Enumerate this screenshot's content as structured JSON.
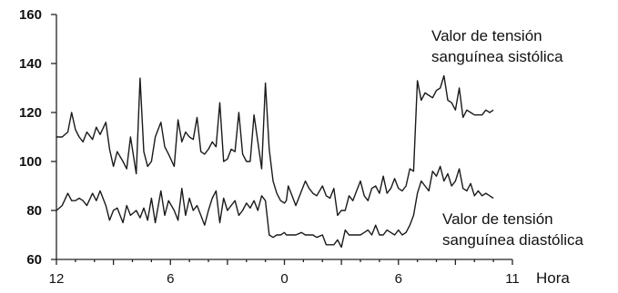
{
  "chart_data": {
    "type": "line",
    "title": "",
    "xlabel": "Hora",
    "ylabel": "",
    "ylim": [
      60,
      160
    ],
    "xlim": [
      0,
      23
    ],
    "grid": false,
    "x_tick_labels": [
      {
        "x": 0,
        "label": "12"
      },
      {
        "x": 6,
        "label": "6"
      },
      {
        "x": 12,
        "label": "0"
      },
      {
        "x": 18,
        "label": "6"
      },
      {
        "x": 24,
        "label": "11"
      }
    ],
    "y_ticks": [
      60,
      80,
      100,
      120,
      140,
      160
    ],
    "series": [
      {
        "name": "Valor de tensión sanguínea sistólica",
        "x": [
          0,
          0.3,
          0.6,
          0.8,
          1.0,
          1.2,
          1.4,
          1.6,
          1.9,
          2.1,
          2.3,
          2.6,
          2.8,
          3.0,
          3.2,
          3.5,
          3.7,
          3.9,
          4.2,
          4.4,
          4.6,
          4.8,
          5.0,
          5.2,
          5.5,
          5.7,
          5.9,
          6.2,
          6.4,
          6.6,
          6.8,
          7.0,
          7.2,
          7.4,
          7.6,
          7.8,
          8.0,
          8.2,
          8.4,
          8.6,
          8.8,
          9.0,
          9.2,
          9.4,
          9.6,
          9.8,
          10.0,
          10.2,
          10.4,
          10.6,
          10.8,
          11.0,
          11.2,
          11.4,
          11.6,
          11.8,
          12.0,
          12.1,
          12.2,
          12.4,
          12.6,
          12.9,
          13.1,
          13.3,
          13.5,
          13.7,
          14.0,
          14.2,
          14.4,
          14.6,
          14.8,
          15.0,
          15.2,
          15.4,
          15.6,
          15.8,
          16.0,
          16.2,
          16.4,
          16.6,
          16.8,
          17.0,
          17.2,
          17.4,
          17.6,
          17.8,
          18.0,
          18.2,
          18.4,
          18.6,
          18.8,
          19.0,
          19.2,
          19.4,
          19.6,
          19.8,
          20.0,
          20.2,
          20.4,
          20.6,
          20.8,
          21.0,
          21.2,
          21.4,
          21.6,
          21.8,
          22.0,
          22.2,
          22.4,
          22.6,
          22.8,
          23.0
        ],
        "values": [
          110,
          110,
          112,
          120,
          113,
          110,
          108,
          112,
          109,
          114,
          111,
          116,
          105,
          98,
          104,
          100,
          97,
          110,
          95,
          134,
          104,
          98,
          100,
          110,
          116,
          106,
          103,
          98,
          117,
          108,
          112,
          110,
          109,
          118,
          104,
          103,
          105,
          108,
          106,
          124,
          100,
          101,
          105,
          104,
          120,
          103,
          100,
          100,
          119,
          108,
          97,
          132,
          105,
          92,
          87,
          84,
          83,
          84,
          90,
          86,
          82,
          88,
          92,
          89,
          87,
          86,
          90,
          86,
          85,
          89,
          78,
          80,
          80,
          86,
          84,
          88,
          92,
          86,
          84,
          89,
          90,
          87,
          94,
          87,
          89,
          93,
          89,
          88,
          90,
          97,
          96,
          133,
          125,
          128,
          127,
          126,
          129,
          130,
          135,
          125,
          124,
          121,
          130,
          118,
          121,
          120,
          119,
          119,
          119,
          121,
          120,
          121
        ],
        "annotation": [
          "Valor de tensión",
          "sanguínea sistólica"
        ]
      },
      {
        "name": "Valor de tensión sanguínea diastólica",
        "x": [
          0,
          0.3,
          0.6,
          0.8,
          1.0,
          1.2,
          1.4,
          1.6,
          1.9,
          2.1,
          2.3,
          2.6,
          2.8,
          3.0,
          3.2,
          3.5,
          3.7,
          3.9,
          4.2,
          4.4,
          4.6,
          4.8,
          5.0,
          5.2,
          5.5,
          5.7,
          5.9,
          6.2,
          6.4,
          6.6,
          6.8,
          7.0,
          7.2,
          7.4,
          7.6,
          7.8,
          8.0,
          8.2,
          8.4,
          8.6,
          8.8,
          9.0,
          9.2,
          9.4,
          9.6,
          9.8,
          10.0,
          10.2,
          10.4,
          10.6,
          10.8,
          11.0,
          11.2,
          11.4,
          11.6,
          11.8,
          12.0,
          12.1,
          12.2,
          12.4,
          12.6,
          12.9,
          13.1,
          13.3,
          13.5,
          13.7,
          14.0,
          14.2,
          14.4,
          14.6,
          14.8,
          15.0,
          15.2,
          15.4,
          15.6,
          15.8,
          16.0,
          16.2,
          16.4,
          16.6,
          16.8,
          17.0,
          17.2,
          17.4,
          17.6,
          17.8,
          18.0,
          18.2,
          18.4,
          18.6,
          18.8,
          19.0,
          19.2,
          19.4,
          19.6,
          19.8,
          20.0,
          20.2,
          20.4,
          20.6,
          20.8,
          21.0,
          21.2,
          21.4,
          21.6,
          21.8,
          22.0,
          22.2,
          22.4,
          22.6,
          22.8,
          23.0
        ],
        "values": [
          80,
          82,
          87,
          84,
          84,
          85,
          84,
          82,
          87,
          84,
          88,
          82,
          76,
          80,
          81,
          75,
          82,
          78,
          80,
          77,
          81,
          76,
          85,
          75,
          88,
          78,
          84,
          80,
          76,
          89,
          78,
          85,
          80,
          82,
          78,
          74,
          80,
          85,
          88,
          75,
          85,
          80,
          82,
          84,
          78,
          80,
          83,
          81,
          84,
          80,
          86,
          84,
          70,
          69,
          70,
          70,
          71,
          70,
          70,
          70,
          70,
          71,
          70,
          70,
          70,
          69,
          70,
          66,
          66,
          66,
          68,
          65,
          72,
          70,
          70,
          70,
          70,
          71,
          72,
          70,
          74,
          70,
          70,
          72,
          71,
          70,
          72,
          70,
          71,
          74,
          78,
          87,
          92,
          90,
          88,
          96,
          94,
          98,
          92,
          95,
          90,
          92,
          97,
          89,
          88,
          91,
          86,
          88,
          86,
          87,
          86,
          85
        ],
        "annotation": [
          "Valor de tensión",
          "sanguínea diastólica"
        ]
      }
    ]
  }
}
